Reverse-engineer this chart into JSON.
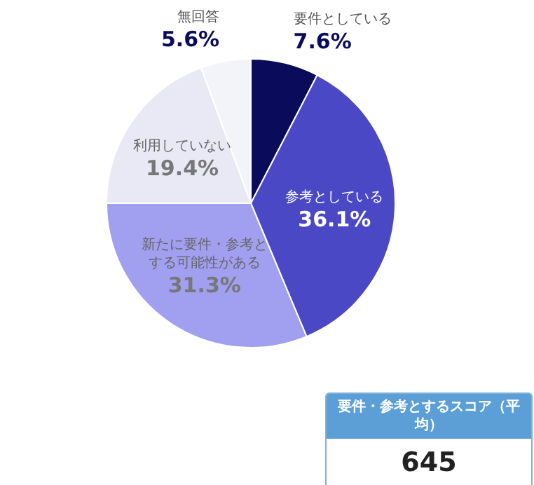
{
  "chart_data": [
    {
      "type": "pie",
      "categories": [
        "要件としている",
        "参考としている",
        "新たに要件・参考とする可能性がある",
        "利用していない",
        "無回答"
      ],
      "values": [
        7.6,
        36.1,
        31.3,
        19.4,
        5.6
      ],
      "colors": [
        "#0b0b5c",
        "#4b48c6",
        "#a19ff0",
        "#e9e9f6",
        "#f3f3fa"
      ],
      "value_labels": [
        "7.6%",
        "36.1%",
        "31.3%",
        "19.4%",
        "5.6%"
      ]
    },
    {
      "type": "other",
      "title": "要件・参考とするスコア（平均）",
      "annotations": [
        "645"
      ]
    }
  ]
}
